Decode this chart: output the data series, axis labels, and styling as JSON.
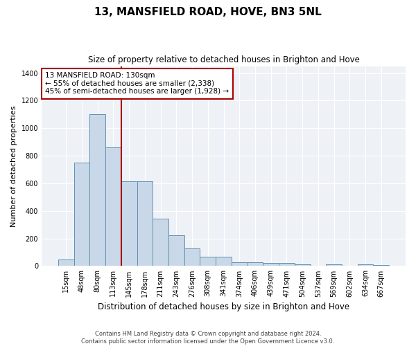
{
  "title": "13, MANSFIELD ROAD, HOVE, BN3 5NL",
  "subtitle": "Size of property relative to detached houses in Brighton and Hove",
  "xlabel": "Distribution of detached houses by size in Brighton and Hove",
  "ylabel": "Number of detached properties",
  "footer_line1": "Contains HM Land Registry data © Crown copyright and database right 2024.",
  "footer_line2": "Contains public sector information licensed under the Open Government Licence v3.0.",
  "annotation_line1": "13 MANSFIELD ROAD: 130sqm",
  "annotation_line2": "← 55% of detached houses are smaller (2,338)",
  "annotation_line3": "45% of semi-detached houses are larger (1,928) →",
  "bar_color": "#c8d8e8",
  "bar_edge_color": "#6090b0",
  "red_line_color": "#aa0000",
  "annotation_box_edgecolor": "#aa0000",
  "categories": [
    "15sqm",
    "48sqm",
    "80sqm",
    "113sqm",
    "145sqm",
    "178sqm",
    "211sqm",
    "243sqm",
    "276sqm",
    "308sqm",
    "341sqm",
    "374sqm",
    "406sqm",
    "439sqm",
    "471sqm",
    "504sqm",
    "537sqm",
    "569sqm",
    "602sqm",
    "634sqm",
    "667sqm"
  ],
  "values": [
    47,
    750,
    1100,
    860,
    615,
    615,
    345,
    225,
    130,
    65,
    65,
    25,
    25,
    20,
    20,
    10,
    0,
    10,
    0,
    10,
    5
  ],
  "ylim": [
    0,
    1450
  ],
  "yticks": [
    0,
    200,
    400,
    600,
    800,
    1000,
    1200,
    1400
  ],
  "red_line_x": 3.5,
  "figsize": [
    6.0,
    5.0
  ],
  "dpi": 100,
  "plot_bg_color": "#eef2f7"
}
